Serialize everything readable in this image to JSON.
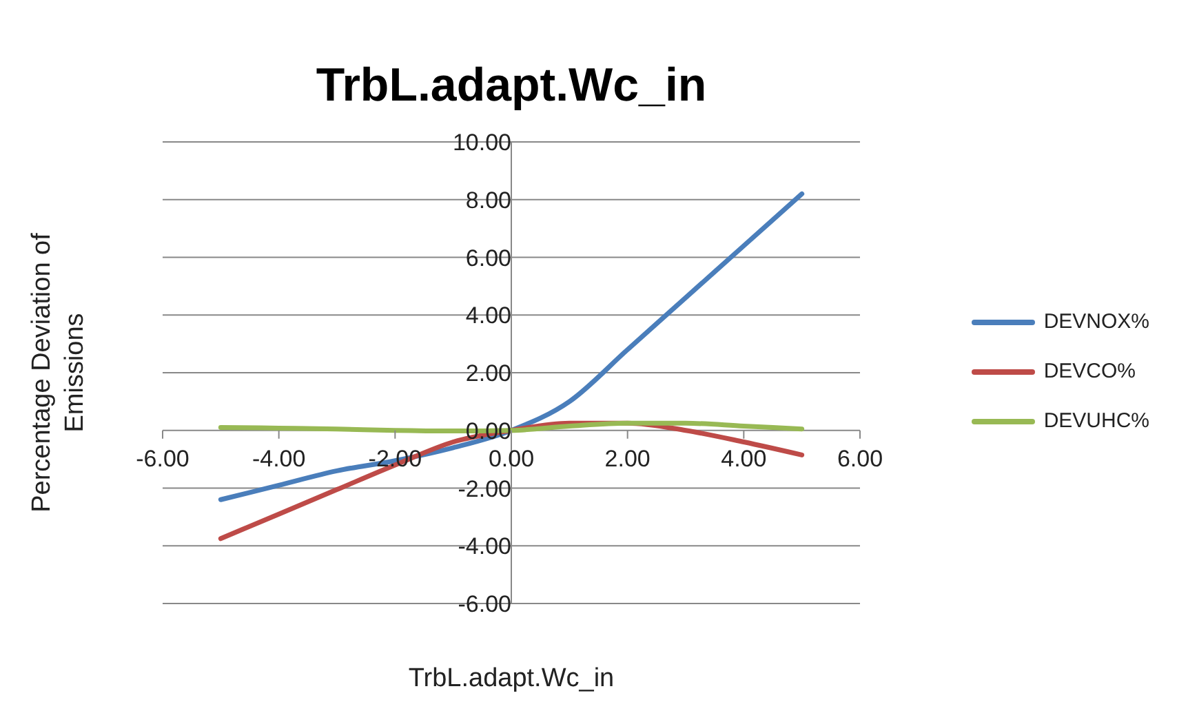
{
  "chart_data": {
    "type": "line",
    "title": "TrbL.adapt.Wc_in",
    "xlabel": "TrbL.adapt.Wc_in",
    "ylabel": "Percentage Deviation of Emissions",
    "x": [
      -5,
      -4,
      -3,
      -2,
      -1,
      0,
      1,
      2,
      3,
      4,
      5
    ],
    "series": [
      {
        "name": "DEVNOX%",
        "color": "#4a7ebb",
        "values": [
          -2.4,
          -1.9,
          -1.4,
          -1.05,
          -0.6,
          0,
          1.0,
          2.8,
          4.6,
          6.4,
          8.2
        ]
      },
      {
        "name": "DEVCO%",
        "color": "#be4b48",
        "values": [
          -3.75,
          -2.9,
          -2.05,
          -1.2,
          -0.4,
          0,
          0.25,
          0.25,
          0.0,
          -0.4,
          -0.85
        ]
      },
      {
        "name": "DEVUHC%",
        "color": "#98b954",
        "values": [
          0.1,
          0.08,
          0.05,
          0.0,
          -0.02,
          0,
          0.15,
          0.25,
          0.25,
          0.15,
          0.05
        ]
      }
    ],
    "xlim": [
      -6,
      6
    ],
    "xticks": [
      {
        "value": -6,
        "label": "-6.00"
      },
      {
        "value": -4,
        "label": "-4.00"
      },
      {
        "value": -2,
        "label": "-2.00"
      },
      {
        "value": 0,
        "label": "0.00"
      },
      {
        "value": 2,
        "label": "2.00"
      },
      {
        "value": 4,
        "label": "4.00"
      },
      {
        "value": 6,
        "label": "6.00"
      }
    ],
    "ylim": [
      -6,
      10
    ],
    "yticks": [
      {
        "value": -6,
        "label": "-6.00"
      },
      {
        "value": -4,
        "label": "-4.00"
      },
      {
        "value": -2,
        "label": "-2.00"
      },
      {
        "value": 0,
        "label": "0.00"
      },
      {
        "value": 2,
        "label": "2.00"
      },
      {
        "value": 4,
        "label": "4.00"
      },
      {
        "value": 6,
        "label": "6.00"
      },
      {
        "value": 8,
        "label": "8.00"
      },
      {
        "value": 10,
        "label": "10.00"
      }
    ],
    "grid": "y",
    "legend": "right",
    "marker": "none",
    "line_style": "solid"
  }
}
